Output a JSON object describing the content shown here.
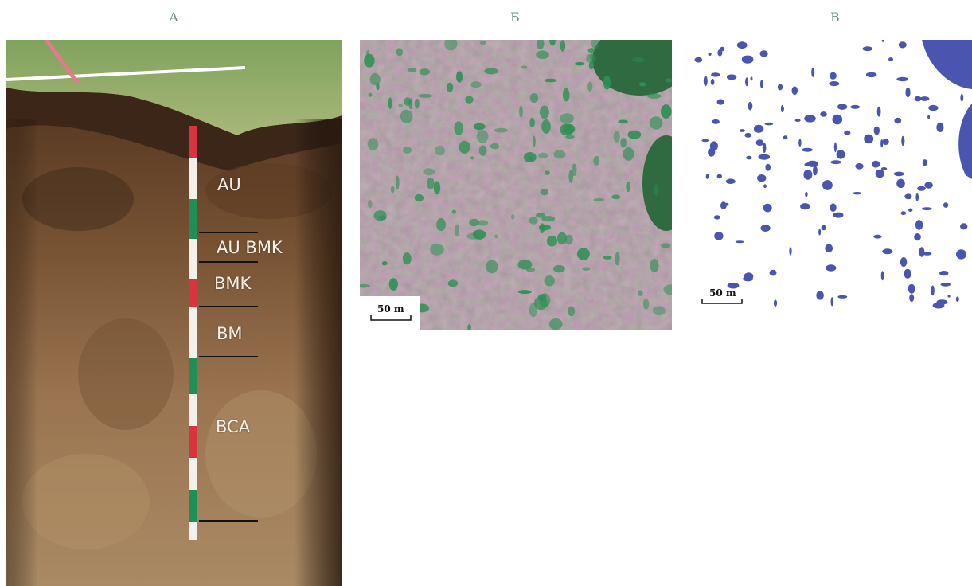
{
  "panels": [
    {
      "label": "А"
    },
    {
      "label": "Б"
    },
    {
      "label": "В"
    }
  ],
  "soil_profile": {
    "horizons": [
      "AU",
      "AU BMK",
      "BMK",
      "BM",
      "BCA"
    ]
  },
  "aerial": {
    "scale_label": "50 m"
  },
  "mask": {
    "scale_label": "50 m",
    "patch_color": "#4a55b0"
  }
}
